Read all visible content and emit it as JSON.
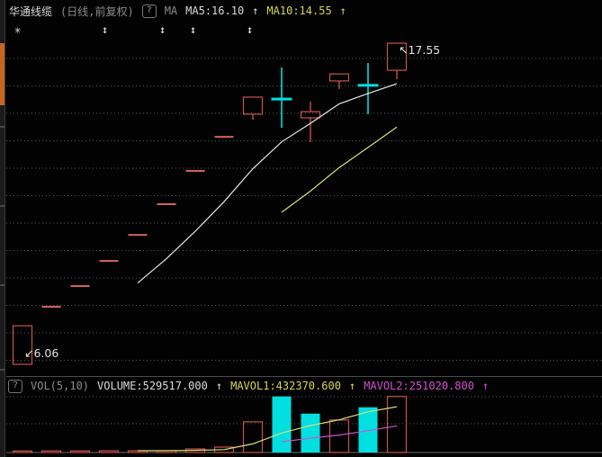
{
  "header": {
    "symbol_name": "华通线缆",
    "period_label": "(日线,前复权)",
    "help_icon": "?",
    "ma_label": "MA",
    "ma5_label": "MA5:16.10",
    "ma5_arrow": "↑",
    "ma10_label": "MA10:14.55",
    "ma10_arrow": "↑"
  },
  "markers": {
    "star": "✳",
    "arrows": [
      "↕",
      "↕",
      "↕",
      "↕"
    ]
  },
  "annotations": {
    "high_arrow": "↖",
    "high_label": "17.55",
    "low_arrow": "↙",
    "low_label": "6.06"
  },
  "volume_header": {
    "help_icon": "?",
    "indicator_label": "VOL(5,10)",
    "volume_label": "VOLUME:529517.000",
    "volume_arrow": "↑",
    "mavol1_label": "MAVOL1:432370.600",
    "mavol1_arrow": "↑",
    "mavol2_label": "MAVOL2:251020.800",
    "mavol2_arrow": "↑"
  },
  "colors": {
    "up_red": "#c8524e",
    "dash_red": "#d06060",
    "down_cyan": "#00e0e0",
    "ma5_white": "#e9e9e9",
    "ma10_yellow": "#dede74",
    "mavol1_yellow": "#dede74",
    "mavol2_magenta": "#d24fd2",
    "grid": "#5a5a5a",
    "label_white": "#e2e2e2"
  },
  "chart_data": {
    "type": "candlestick",
    "title": "华通线缆 日线 前复权",
    "price_low": 6.06,
    "price_high": 17.55,
    "ma5_last": 16.1,
    "ma10_last": 14.55,
    "volume_last": 529517.0,
    "mavol1_last": 432370.6,
    "mavol2_last": 251020.8,
    "candles": [
      {
        "open": 6.06,
        "high": 7.44,
        "low": 6.06,
        "close": 7.44,
        "dir": "up",
        "volume_dir": "up",
        "volume": 14000
      },
      {
        "open": 8.12,
        "high": 8.12,
        "low": 8.12,
        "close": 8.12,
        "dir": "up",
        "volume_dir": "up",
        "volume": 15000
      },
      {
        "open": 8.86,
        "high": 8.86,
        "low": 8.86,
        "close": 8.86,
        "dir": "up",
        "volume_dir": "up",
        "volume": 15000
      },
      {
        "open": 9.76,
        "high": 9.76,
        "low": 9.76,
        "close": 9.76,
        "dir": "up",
        "volume_dir": "up",
        "volume": 16000
      },
      {
        "open": 10.69,
        "high": 10.69,
        "low": 10.69,
        "close": 10.69,
        "dir": "up",
        "volume_dir": "up",
        "volume": 16000
      },
      {
        "open": 11.79,
        "high": 11.79,
        "low": 11.79,
        "close": 11.79,
        "dir": "up",
        "volume_dir": "up",
        "volume": 17000
      },
      {
        "open": 12.98,
        "high": 12.98,
        "low": 12.98,
        "close": 12.98,
        "dir": "up",
        "volume_dir": "up",
        "volume": 34000
      },
      {
        "open": 14.2,
        "high": 14.2,
        "low": 14.2,
        "close": 14.2,
        "dir": "up",
        "volume_dir": "up",
        "volume": 51000
      },
      {
        "open": 15.01,
        "high": 15.62,
        "low": 14.81,
        "close": 15.62,
        "dir": "up",
        "volume_dir": "up",
        "volume": 290000
      },
      {
        "open": 15.5,
        "high": 16.68,
        "low": 14.52,
        "close": 15.55,
        "dir": "down",
        "volume_dir": "down",
        "volume": 530000
      },
      {
        "open": 14.88,
        "high": 15.46,
        "low": 14.01,
        "close": 15.1,
        "dir": "up",
        "volume_dir": "down",
        "volume": 367000
      },
      {
        "open": 16.2,
        "high": 16.45,
        "low": 15.91,
        "close": 16.45,
        "dir": "up",
        "volume_dir": "up",
        "volume": 307000
      },
      {
        "open": 16.0,
        "high": 16.84,
        "low": 15.01,
        "close": 16.04,
        "dir": "down",
        "volume_dir": "down",
        "volume": 427000
      },
      {
        "open": 16.58,
        "high": 17.55,
        "low": 16.26,
        "close": 17.55,
        "dir": "up",
        "volume_dir": "up",
        "volume": 529517
      }
    ],
    "ma5": {
      "start_index": 4,
      "values": [
        8.97,
        9.84,
        10.82,
        11.88,
        13.06,
        14.02,
        14.68,
        15.38,
        15.75,
        16.1
      ]
    },
    "ma10": {
      "start_index": 9,
      "values": [
        11.5,
        12.26,
        13.1,
        13.82,
        14.55
      ]
    },
    "mavol1": {
      "start_index": 4,
      "values": [
        17000,
        17000,
        20400,
        27200,
        81800,
        184400,
        254400,
        309000,
        384200,
        432370.6
      ]
    },
    "mavol2": {
      "start_index": 9,
      "values": [
        100700,
        135700,
        164700,
        205700,
        251020.8
      ]
    }
  }
}
